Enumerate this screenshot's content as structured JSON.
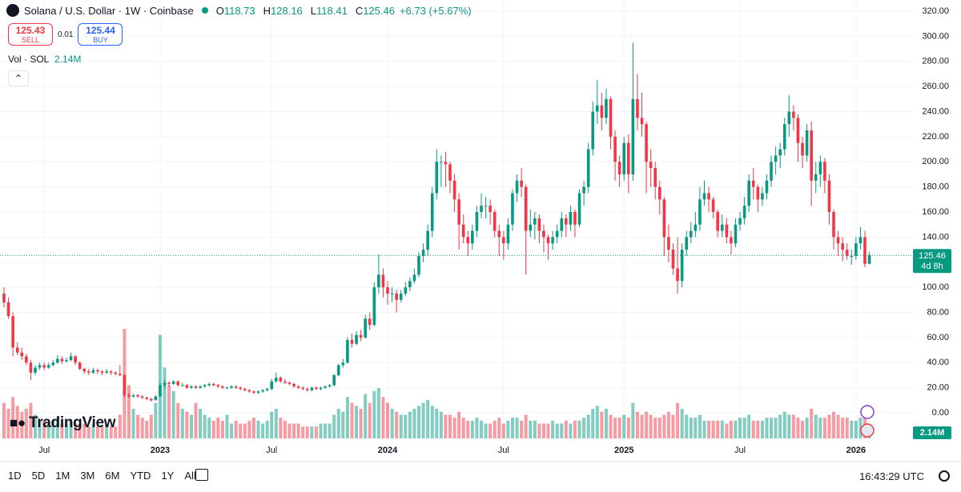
{
  "header": {
    "symbol": "Solana / U.S. Dollar · 1W · Coinbase",
    "ohlc_labels": [
      "O",
      "H",
      "L",
      "C"
    ],
    "ohlc": [
      118.73,
      128.16,
      118.41,
      125.46
    ],
    "change": "+6.73 (+5.67%)"
  },
  "trade": {
    "sell_price": "125.43",
    "sell_label": "SELL",
    "spread": "0.01",
    "buy_price": "125.44",
    "buy_label": "BUY"
  },
  "volume_legend": {
    "label": "Vol · SOL",
    "value": "2.14M"
  },
  "brand": "TradingView",
  "toolbar": {
    "ranges": [
      "1D",
      "5D",
      "1M",
      "3M",
      "6M",
      "YTD",
      "1Y",
      "All"
    ],
    "clock": "16:43:29 UTC"
  },
  "chart_data": {
    "type": "candlestick",
    "up_color": "#089981",
    "down_color": "#f23645",
    "grid": true,
    "ylim": [
      -20.39,
      328.92
    ],
    "yticks": [
      {
        "value": 0,
        "label": "0.00"
      },
      {
        "value": 20,
        "label": "20.00"
      },
      {
        "value": 40,
        "label": "40.00"
      },
      {
        "value": 60,
        "label": "60.00"
      },
      {
        "value": 80,
        "label": "80.00"
      },
      {
        "value": 100,
        "label": "100.00"
      },
      {
        "value": 120,
        "label": "120.00"
      },
      {
        "value": 140,
        "label": "140.00"
      },
      {
        "value": 160,
        "label": "160.00"
      },
      {
        "value": 180,
        "label": "180.00"
      },
      {
        "value": 200,
        "label": "200.00"
      },
      {
        "value": 220,
        "label": "220.00"
      },
      {
        "value": 240,
        "label": "240.00"
      },
      {
        "value": 260,
        "label": "260.00"
      },
      {
        "value": 280,
        "label": "280.00"
      },
      {
        "value": 300,
        "label": "300.00"
      },
      {
        "value": 320,
        "label": "320.00"
      }
    ],
    "price_tag": {
      "countdown": "4d 8h"
    },
    "volume_tag": "2.14M",
    "categories": [
      null,
      null,
      null,
      null,
      null,
      null,
      null,
      null,
      null,
      "Jul",
      null,
      null,
      null,
      null,
      null,
      null,
      null,
      null,
      null,
      null,
      null,
      null,
      null,
      null,
      null,
      null,
      null,
      null,
      null,
      null,
      null,
      null,
      null,
      null,
      null,
      "2023",
      null,
      null,
      null,
      null,
      null,
      null,
      null,
      null,
      null,
      null,
      null,
      null,
      null,
      null,
      null,
      null,
      null,
      null,
      null,
      null,
      null,
      null,
      null,
      null,
      "Jul",
      null,
      null,
      null,
      null,
      null,
      null,
      null,
      null,
      null,
      null,
      null,
      null,
      null,
      null,
      null,
      null,
      null,
      null,
      null,
      null,
      null,
      null,
      null,
      null,
      null,
      "2024",
      null,
      null,
      null,
      null,
      null,
      null,
      null,
      null,
      null,
      null,
      null,
      null,
      null,
      null,
      null,
      null,
      null,
      null,
      null,
      null,
      null,
      null,
      null,
      null,
      null,
      "Jul",
      null,
      null,
      null,
      null,
      null,
      null,
      null,
      null,
      null,
      null,
      null,
      null,
      null,
      null,
      null,
      null,
      null,
      null,
      null,
      null,
      null,
      null,
      null,
      null,
      null,
      null,
      "2025",
      null,
      null,
      null,
      null,
      null,
      null,
      null,
      null,
      null,
      null,
      null,
      null,
      null,
      null,
      null,
      null,
      null,
      null,
      null,
      null,
      null,
      null,
      null,
      null,
      null,
      "Jul",
      null,
      null,
      null,
      null,
      null,
      null,
      null,
      null,
      null,
      null,
      null,
      null,
      null,
      null,
      null,
      null,
      null,
      null,
      null,
      null,
      null,
      null,
      null,
      null,
      null,
      "2026",
      null,
      null,
      null
    ],
    "candles": [
      [
        95,
        100,
        84,
        88
      ],
      [
        88,
        92,
        75,
        77
      ],
      [
        77,
        80,
        45,
        52
      ],
      [
        52,
        56,
        46,
        48
      ],
      [
        48,
        52,
        42,
        45
      ],
      [
        45,
        47,
        38,
        40
      ],
      [
        40,
        42,
        26,
        32
      ],
      [
        32,
        38,
        30,
        36
      ],
      [
        36,
        40,
        34,
        38
      ],
      [
        38,
        40,
        34,
        36
      ],
      [
        36,
        40,
        35,
        38
      ],
      [
        38,
        42,
        37,
        40
      ],
      [
        40,
        46,
        39,
        43
      ],
      [
        43,
        45,
        39,
        41
      ],
      [
        41,
        44,
        40,
        42
      ],
      [
        42,
        48,
        41,
        45
      ],
      [
        45,
        46,
        38,
        40
      ],
      [
        40,
        41,
        34,
        35
      ],
      [
        35,
        36,
        31,
        33
      ],
      [
        33,
        35,
        30,
        32
      ],
      [
        32,
        36,
        31,
        34
      ],
      [
        34,
        35,
        31,
        33
      ],
      [
        33,
        34,
        30,
        32
      ],
      [
        32,
        35,
        31,
        33
      ],
      [
        33,
        34,
        30,
        32
      ],
      [
        32,
        33,
        30,
        31
      ],
      [
        31,
        38,
        29,
        30
      ],
      [
        30,
        31,
        12,
        14
      ],
      [
        14,
        16,
        12,
        13
      ],
      [
        13,
        15,
        12,
        14
      ],
      [
        14,
        15,
        12,
        13
      ],
      [
        13,
        14,
        11,
        12
      ],
      [
        12,
        13,
        10,
        11
      ],
      [
        11,
        12,
        9,
        10
      ],
      [
        10,
        14,
        10,
        13
      ],
      [
        13,
        24,
        13,
        22
      ],
      [
        22,
        26,
        20,
        24
      ],
      [
        24,
        25,
        21,
        23
      ],
      [
        23,
        26,
        22,
        25
      ],
      [
        25,
        26,
        21,
        22
      ],
      [
        22,
        24,
        21,
        22
      ],
      [
        22,
        23,
        19,
        20
      ],
      [
        20,
        22,
        19,
        21
      ],
      [
        21,
        22,
        19,
        20
      ],
      [
        20,
        22,
        19,
        21
      ],
      [
        21,
        23,
        20,
        22
      ],
      [
        22,
        24,
        21,
        23
      ],
      [
        23,
        24,
        21,
        22
      ],
      [
        22,
        23,
        20,
        21
      ],
      [
        21,
        22,
        19,
        20
      ],
      [
        20,
        21,
        19,
        20
      ],
      [
        20,
        22,
        19,
        21
      ],
      [
        21,
        22,
        19,
        20
      ],
      [
        20,
        21,
        18,
        19
      ],
      [
        19,
        20,
        17,
        18
      ],
      [
        18,
        19,
        16,
        17
      ],
      [
        17,
        18,
        15,
        16
      ],
      [
        16,
        18,
        15,
        17
      ],
      [
        17,
        19,
        16,
        18
      ],
      [
        18,
        20,
        17,
        19
      ],
      [
        19,
        27,
        18,
        25
      ],
      [
        25,
        32,
        24,
        28
      ],
      [
        28,
        29,
        24,
        25
      ],
      [
        25,
        27,
        23,
        24
      ],
      [
        24,
        25,
        22,
        23
      ],
      [
        23,
        24,
        20,
        21
      ],
      [
        21,
        22,
        19,
        20
      ],
      [
        20,
        21,
        18,
        19
      ],
      [
        19,
        20,
        17,
        18
      ],
      [
        18,
        21,
        17,
        20
      ],
      [
        20,
        21,
        18,
        19
      ],
      [
        19,
        21,
        18,
        20
      ],
      [
        20,
        22,
        19,
        21
      ],
      [
        21,
        23,
        20,
        22
      ],
      [
        22,
        31,
        21,
        30
      ],
      [
        30,
        39,
        29,
        38
      ],
      [
        38,
        43,
        36,
        40
      ],
      [
        40,
        60,
        39,
        58
      ],
      [
        58,
        63,
        52,
        55
      ],
      [
        55,
        65,
        54,
        62
      ],
      [
        62,
        66,
        57,
        60
      ],
      [
        60,
        78,
        59,
        75
      ],
      [
        75,
        80,
        66,
        70
      ],
      [
        70,
        104,
        69,
        100
      ],
      [
        100,
        126,
        95,
        110
      ],
      [
        110,
        115,
        92,
        100
      ],
      [
        100,
        105,
        86,
        95
      ],
      [
        95,
        100,
        88,
        95
      ],
      [
        95,
        98,
        80,
        90
      ],
      [
        90,
        98,
        88,
        95
      ],
      [
        95,
        104,
        93,
        100
      ],
      [
        100,
        108,
        97,
        105
      ],
      [
        105,
        115,
        103,
        110
      ],
      [
        110,
        128,
        108,
        125
      ],
      [
        125,
        135,
        120,
        130
      ],
      [
        130,
        150,
        125,
        145
      ],
      [
        145,
        180,
        140,
        175
      ],
      [
        175,
        210,
        170,
        200
      ],
      [
        200,
        205,
        180,
        200
      ],
      [
        200,
        208,
        180,
        198
      ],
      [
        198,
        200,
        175,
        185
      ],
      [
        185,
        190,
        160,
        170
      ],
      [
        170,
        175,
        130,
        150
      ],
      [
        150,
        158,
        135,
        140
      ],
      [
        140,
        145,
        125,
        135
      ],
      [
        135,
        150,
        130,
        145
      ],
      [
        145,
        165,
        140,
        160
      ],
      [
        160,
        175,
        155,
        165
      ],
      [
        165,
        172,
        155,
        165
      ],
      [
        165,
        170,
        150,
        160
      ],
      [
        160,
        162,
        140,
        145
      ],
      [
        145,
        150,
        125,
        140
      ],
      [
        140,
        145,
        122,
        135
      ],
      [
        135,
        155,
        130,
        150
      ],
      [
        150,
        178,
        145,
        175
      ],
      [
        175,
        190,
        168,
        185
      ],
      [
        185,
        195,
        172,
        180
      ],
      [
        180,
        182,
        110,
        145
      ],
      [
        145,
        162,
        140,
        150
      ],
      [
        150,
        160,
        138,
        155
      ],
      [
        155,
        158,
        135,
        145
      ],
      [
        145,
        150,
        128,
        140
      ],
      [
        140,
        142,
        122,
        135
      ],
      [
        135,
        145,
        130,
        140
      ],
      [
        140,
        150,
        135,
        145
      ],
      [
        145,
        160,
        140,
        155
      ],
      [
        155,
        158,
        140,
        150
      ],
      [
        150,
        165,
        145,
        160
      ],
      [
        160,
        162,
        140,
        150
      ],
      [
        150,
        178,
        148,
        175
      ],
      [
        175,
        185,
        165,
        180
      ],
      [
        180,
        215,
        175,
        210
      ],
      [
        210,
        248,
        205,
        240
      ],
      [
        240,
        265,
        230,
        245
      ],
      [
        245,
        255,
        225,
        235
      ],
      [
        235,
        258,
        230,
        250
      ],
      [
        250,
        252,
        210,
        220
      ],
      [
        220,
        225,
        185,
        200
      ],
      [
        200,
        205,
        180,
        190
      ],
      [
        190,
        220,
        185,
        215
      ],
      [
        215,
        222,
        175,
        190
      ],
      [
        190,
        295,
        185,
        250
      ],
      [
        250,
        270,
        225,
        235
      ],
      [
        235,
        255,
        220,
        230
      ],
      [
        230,
        232,
        175,
        200
      ],
      [
        200,
        210,
        180,
        195
      ],
      [
        195,
        200,
        170,
        180
      ],
      [
        180,
        185,
        158,
        170
      ],
      [
        170,
        172,
        125,
        140
      ],
      [
        140,
        150,
        120,
        130
      ],
      [
        130,
        135,
        110,
        115
      ],
      [
        115,
        140,
        95,
        105
      ],
      [
        105,
        135,
        100,
        130
      ],
      [
        130,
        145,
        125,
        140
      ],
      [
        140,
        152,
        135,
        145
      ],
      [
        145,
        160,
        140,
        150
      ],
      [
        150,
        180,
        145,
        170
      ],
      [
        170,
        185,
        165,
        175
      ],
      [
        175,
        180,
        160,
        170
      ],
      [
        170,
        172,
        155,
        160
      ],
      [
        160,
        162,
        140,
        145
      ],
      [
        145,
        158,
        140,
        150
      ],
      [
        150,
        155,
        135,
        140
      ],
      [
        140,
        145,
        126,
        135
      ],
      [
        135,
        155,
        132,
        150
      ],
      [
        150,
        160,
        145,
        155
      ],
      [
        155,
        172,
        150,
        165
      ],
      [
        165,
        190,
        160,
        185
      ],
      [
        185,
        195,
        170,
        180
      ],
      [
        180,
        182,
        160,
        170
      ],
      [
        170,
        180,
        165,
        175
      ],
      [
        175,
        190,
        170,
        185
      ],
      [
        185,
        205,
        180,
        200
      ],
      [
        200,
        212,
        190,
        205
      ],
      [
        205,
        215,
        195,
        210
      ],
      [
        210,
        235,
        205,
        230
      ],
      [
        230,
        253,
        220,
        240
      ],
      [
        240,
        245,
        225,
        235
      ],
      [
        235,
        238,
        200,
        215
      ],
      [
        215,
        220,
        195,
        205
      ],
      [
        205,
        230,
        200,
        225
      ],
      [
        225,
        232,
        165,
        185
      ],
      [
        185,
        200,
        175,
        190
      ],
      [
        190,
        205,
        180,
        200
      ],
      [
        200,
        203,
        175,
        185
      ],
      [
        185,
        190,
        150,
        160
      ],
      [
        160,
        162,
        130,
        140
      ],
      [
        140,
        145,
        125,
        135
      ],
      [
        135,
        140,
        121,
        130
      ],
      [
        130,
        135,
        122,
        125
      ],
      [
        125,
        130,
        118,
        125
      ],
      [
        125,
        140,
        122,
        135
      ],
      [
        135,
        148,
        130,
        140
      ],
      [
        140,
        145,
        116,
        118.73
      ],
      [
        118.73,
        128.16,
        118.41,
        125.46
      ]
    ],
    "volume": [
      12,
      10,
      14,
      11,
      9,
      10,
      12,
      8,
      6,
      6,
      5,
      6,
      7,
      5,
      5,
      6,
      5,
      5,
      5,
      4,
      5,
      4,
      4,
      5,
      4,
      4,
      8,
      37,
      18,
      10,
      8,
      7,
      6,
      8,
      12,
      35,
      24,
      18,
      16,
      12,
      10,
      9,
      8,
      12,
      10,
      8,
      7,
      6,
      7,
      6,
      8,
      5,
      6,
      5,
      5,
      6,
      7,
      6,
      5,
      6,
      9,
      10,
      7,
      6,
      5,
      5,
      5,
      4,
      4,
      4,
      4,
      5,
      5,
      5,
      8,
      10,
      9,
      14,
      12,
      11,
      10,
      15,
      12,
      16,
      17,
      14,
      12,
      10,
      9,
      8,
      8,
      9,
      10,
      11,
      12,
      13,
      11,
      10,
      9,
      8,
      8,
      7,
      9,
      7,
      6,
      6,
      7,
      6,
      5,
      5,
      6,
      7,
      5,
      6,
      7,
      7,
      6,
      8,
      6,
      6,
      5,
      5,
      5,
      6,
      5,
      5,
      6,
      5,
      6,
      6,
      7,
      8,
      10,
      11,
      9,
      10,
      8,
      7,
      7,
      8,
      7,
      12,
      9,
      8,
      9,
      8,
      7,
      7,
      8,
      9,
      8,
      12,
      10,
      8,
      7,
      7,
      8,
      6,
      6,
      6,
      6,
      6,
      5,
      6,
      6,
      7,
      7,
      8,
      6,
      6,
      6,
      7,
      7,
      7,
      8,
      9,
      8,
      8,
      7,
      6,
      7,
      10,
      8,
      7,
      7,
      8,
      9,
      8,
      7,
      7,
      6,
      6,
      7,
      8,
      2.14
    ]
  }
}
